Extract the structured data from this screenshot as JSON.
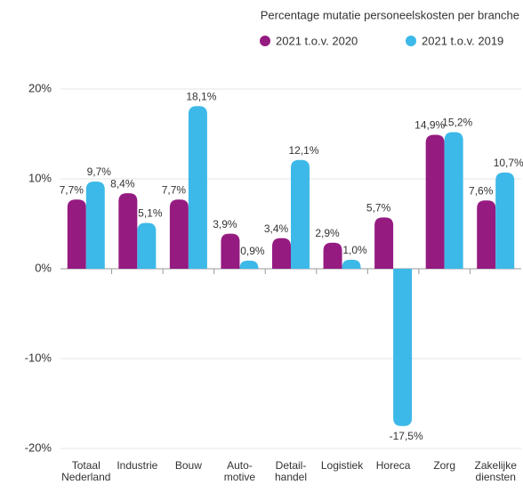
{
  "chart_data": {
    "type": "bar",
    "title": "Percentage mutatie personeelskosten per branche",
    "categories": [
      "Totaal\nNederland",
      "Industrie",
      "Bouw",
      "Auto-\nmotive",
      "Detail-\nhandel",
      "Logistiek",
      "Horeca",
      "Zorg",
      "Zakelijke\ndiensten"
    ],
    "series": [
      {
        "name": "2021 t.o.v. 2020",
        "color": "#951b81",
        "values": [
          7.7,
          8.4,
          7.7,
          3.9,
          3.4,
          2.9,
          5.7,
          14.9,
          7.6
        ],
        "value_labels": [
          "7,7%",
          "8,4%",
          "7,7%",
          "3,9%",
          "3,4%",
          "2,9%",
          "5,7%",
          "14,9%",
          "7,6%"
        ]
      },
      {
        "name": "2021 t.o.v. 2019",
        "color": "#3cb9e8",
        "values": [
          9.7,
          5.1,
          18.1,
          0.9,
          12.1,
          1.0,
          -17.5,
          15.2,
          10.7
        ],
        "value_labels": [
          "9,7%",
          "5,1%",
          "18,1%",
          "0,9%",
          "12,1%",
          "1,0%",
          "-17,5%",
          "15,2%",
          "10,7%"
        ]
      }
    ],
    "ylim": [
      -20,
      20
    ],
    "yticks": [
      {
        "value": -20,
        "label": "-20%"
      },
      {
        "value": -10,
        "label": "-10%"
      },
      {
        "value": 0,
        "label": "0%"
      },
      {
        "value": 10,
        "label": "10%"
      },
      {
        "value": 20,
        "label": "20%"
      }
    ],
    "grid": true,
    "legend": "top"
  }
}
